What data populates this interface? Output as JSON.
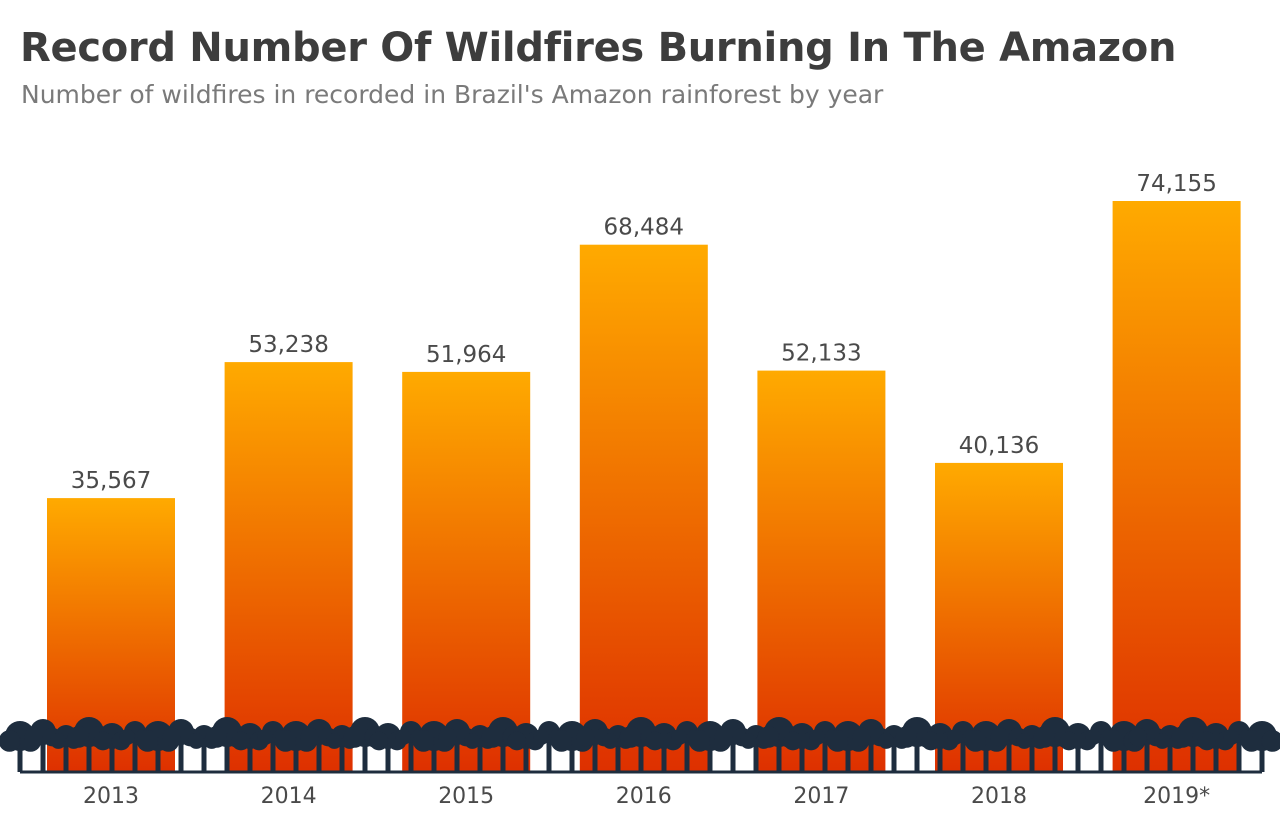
{
  "title": "Record Number Of Wildfires Burning In The Amazon",
  "subtitle": "Number of wildfires in recorded in Brazil's Amazon rainforest by year",
  "colors": {
    "bar_top": "#ffaa00",
    "bar_bottom": "#de3000",
    "trees": "#1e2d3e",
    "text": "#4a4a4a",
    "title": "#3d3d3d",
    "subtitle": "#7a7a7a"
  },
  "chart_data": {
    "type": "bar",
    "categories": [
      "2013",
      "2014",
      "2015",
      "2016",
      "2017",
      "2018",
      "2019*"
    ],
    "values": [
      35567,
      53238,
      51964,
      68484,
      52133,
      40136,
      74155
    ],
    "value_labels": [
      "35,567",
      "53,238",
      "51,964",
      "68,484",
      "52,133",
      "40,136",
      "74,155"
    ],
    "ylim": [
      0,
      74155
    ],
    "grid": false,
    "legend": "none"
  }
}
